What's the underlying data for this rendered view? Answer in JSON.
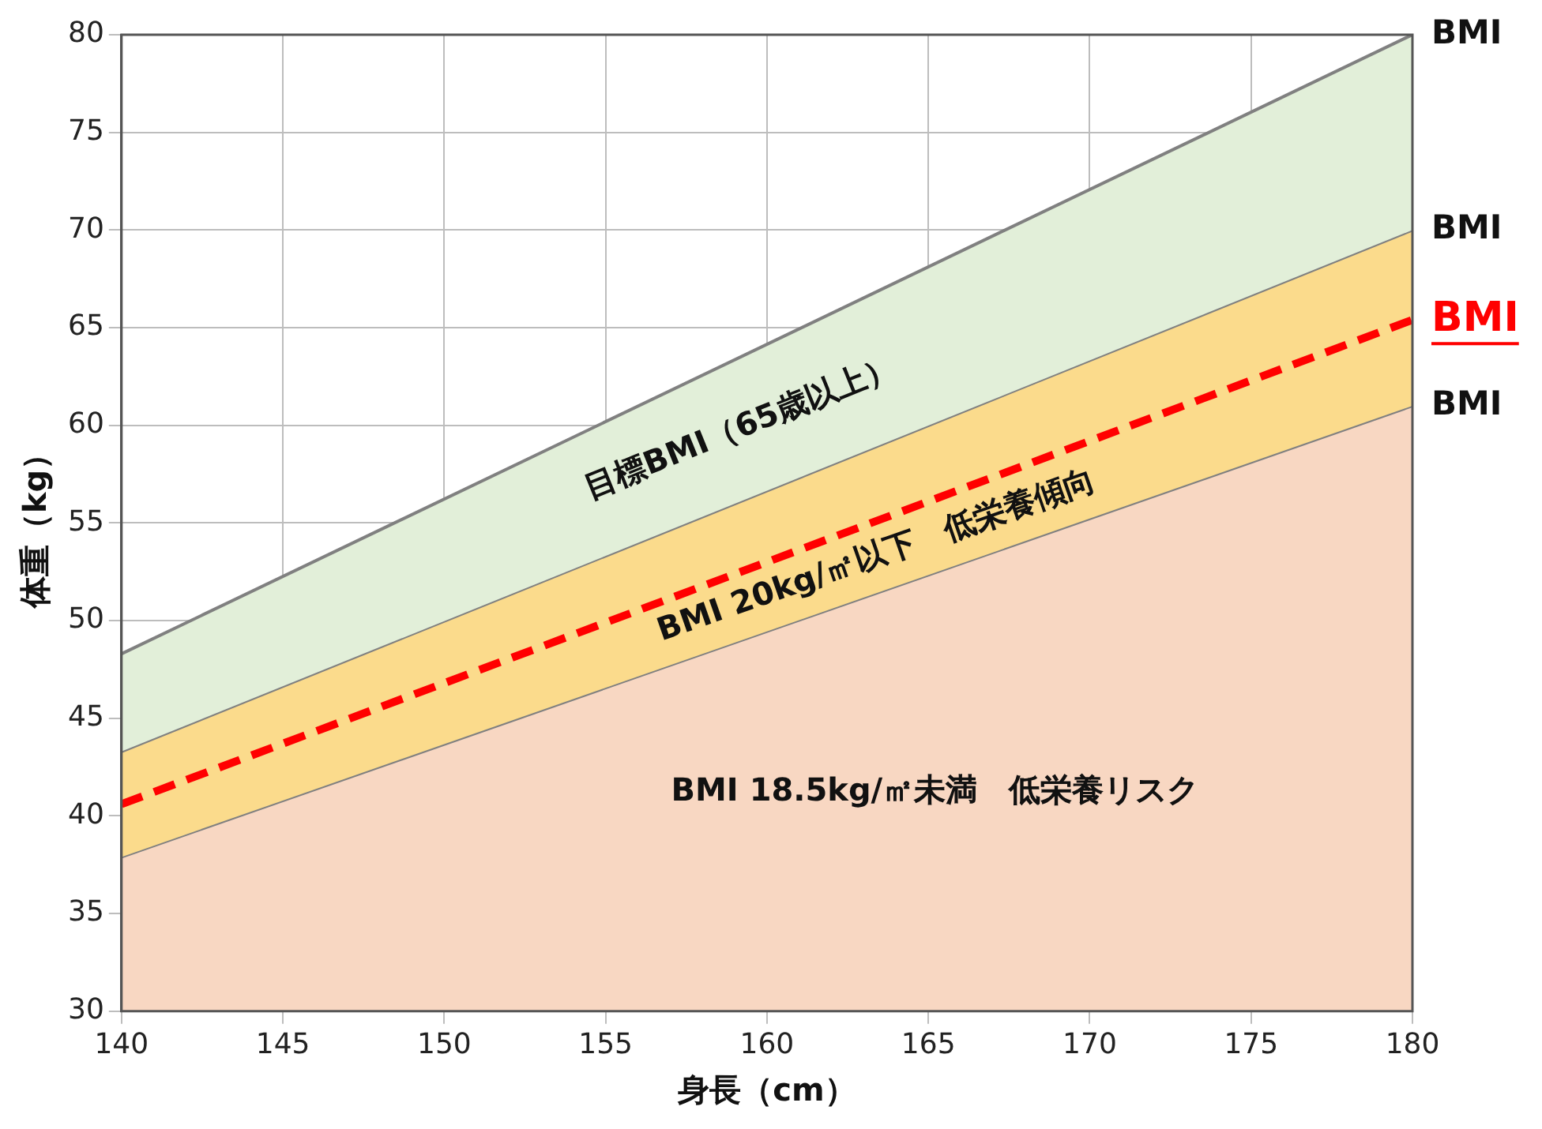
{
  "chart_data": {
    "type": "area",
    "xlabel": "身長（cm）",
    "ylabel": "体重（kg）",
    "xlim": [
      140,
      180
    ],
    "xticks": [
      140,
      145,
      150,
      155,
      160,
      165,
      170,
      175,
      180
    ],
    "ylim": [
      30,
      80
    ],
    "yticks": [
      30,
      35,
      40,
      45,
      50,
      55,
      60,
      65,
      70,
      75,
      80
    ],
    "grid": true,
    "legend": false,
    "marker": "none",
    "x": [
      140,
      180
    ],
    "series": [
      {
        "name": "BMI",
        "type": "area",
        "color": "#e2efd9",
        "values": [
          48.3,
          80
        ]
      },
      {
        "name": "BMI",
        "type": "area",
        "color": "#fbdb8c",
        "values": [
          43.3,
          70
        ]
      },
      {
        "name": "BMI",
        "type": "line",
        "line_style": "dashed",
        "color": "#ff0000",
        "values": [
          40.6,
          65.4
        ]
      },
      {
        "name": "BMI",
        "type": "area",
        "color": "#f8d7c2",
        "values": [
          37.9,
          61
        ]
      }
    ],
    "annotations": [
      "目標BMI（65歳以上）",
      "BMI 20kg/㎡以下　低栄養傾向",
      "BMI 18.5kg/㎡未満　低栄養リスク"
    ]
  }
}
